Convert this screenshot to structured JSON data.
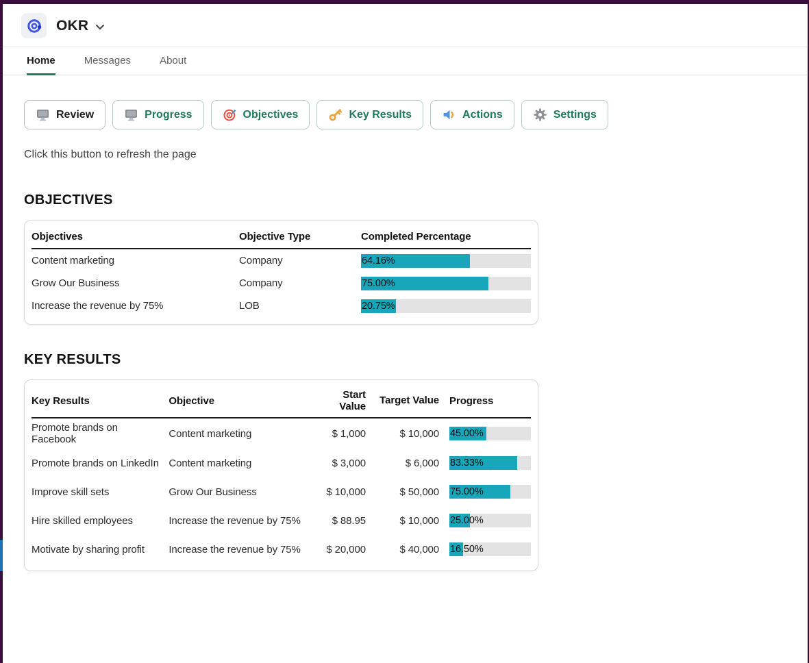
{
  "header": {
    "app_title": "OKR"
  },
  "tabs": {
    "home": "Home",
    "messages": "Messages",
    "about": "About"
  },
  "toolbar": {
    "review": "Review",
    "progress": "Progress",
    "objectives": "Objectives",
    "key_results": "Key Results",
    "actions": "Actions",
    "settings": "Settings"
  },
  "note": "Click this button to refresh the page",
  "objectives_section": {
    "heading": "OBJECTIVES",
    "columns": {
      "objective": "Objectives",
      "type": "Objective Type",
      "completed": "Completed Percentage"
    },
    "rows": [
      {
        "objective": "Content marketing",
        "type": "Company",
        "completed_pct": 64.16,
        "completed_label": "64.16%"
      },
      {
        "objective": "Grow Our Business",
        "type": "Company",
        "completed_pct": 75.0,
        "completed_label": "75.00%"
      },
      {
        "objective": "Increase the revenue by 75%",
        "type": "LOB",
        "completed_pct": 20.75,
        "completed_label": "20.75%"
      }
    ]
  },
  "key_results_section": {
    "heading": "KEY RESULTS",
    "columns": {
      "key_result": "Key Results",
      "objective": "Objective",
      "start": "Start Value",
      "target": "Target Value",
      "progress": "Progress"
    },
    "rows": [
      {
        "key_result": "Promote brands on Facebook",
        "objective": "Content marketing",
        "start": "$ 1,000",
        "target": "$ 10,000",
        "progress_pct": 45.0,
        "progress_label": "45.00%"
      },
      {
        "key_result": "Promote brands on LinkedIn",
        "objective": "Content marketing",
        "start": "$ 3,000",
        "target": "$ 6,000",
        "progress_pct": 83.33,
        "progress_label": "83.33%"
      },
      {
        "key_result": "Improve skill sets",
        "objective": "Grow Our Business",
        "start": "$ 10,000",
        "target": "$ 50,000",
        "progress_pct": 75.0,
        "progress_label": "75.00%"
      },
      {
        "key_result": "Hire skilled employees",
        "objective": "Increase the revenue by 75%",
        "start": "$ 88.95",
        "target": "$ 10,000",
        "progress_pct": 25.0,
        "progress_label": "25.00%"
      },
      {
        "key_result": "Motivate by sharing profit",
        "objective": "Increase the revenue by 75%",
        "start": "$ 20,000",
        "target": "$ 40,000",
        "progress_pct": 16.5,
        "progress_label": "16.50%"
      }
    ]
  },
  "colors": {
    "progress_fill": "#18a6ba",
    "progress_track": "#e3e3e3",
    "accent_green": "#1f7a5c",
    "window_purple": "#3b0f3c",
    "scrollbar_blue": "#1d72b8"
  }
}
